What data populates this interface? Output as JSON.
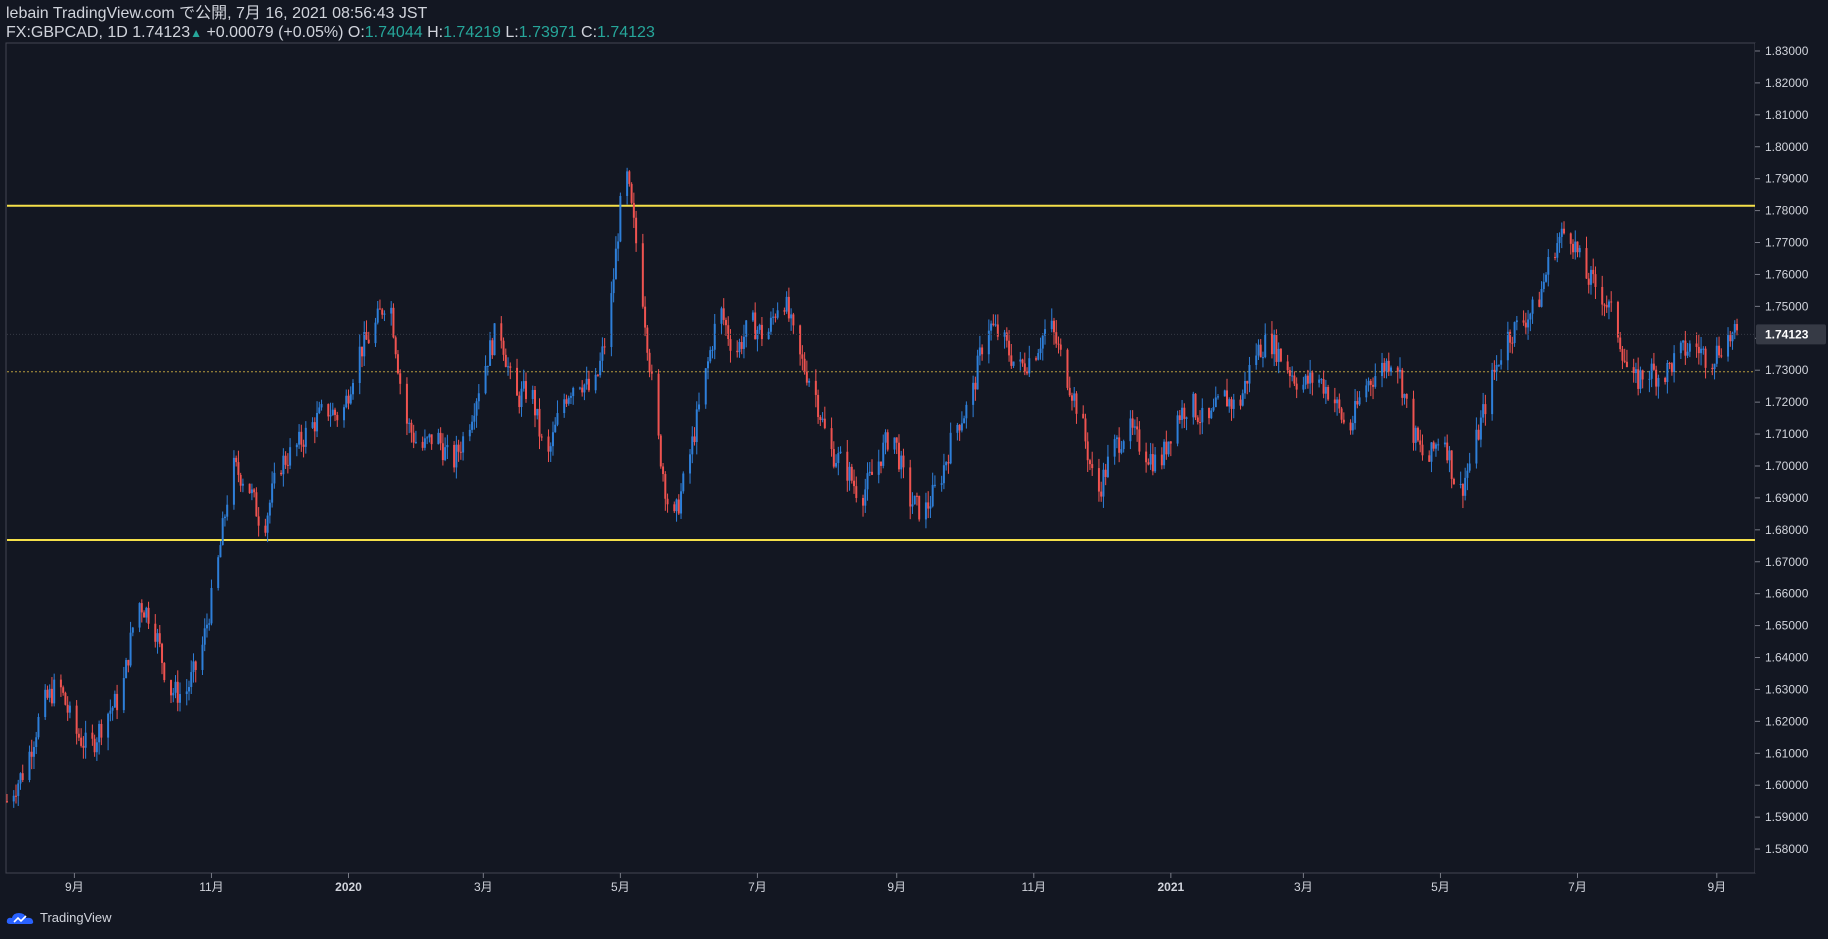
{
  "header": {
    "line1": "lebain TradingView.com で公開, 7月 16, 2021 08:56:43 JST",
    "symbol_prefix": "FX:GBPCAD, 1D 1.74123",
    "change": "+0.00079 (+0.05%)",
    "o_label": "O:",
    "o_value": "1.74044",
    "h_label": "H:",
    "h_value": "1.74219",
    "l_label": "L:",
    "l_value": "1.73971",
    "c_label": "C:",
    "c_value": "1.74123"
  },
  "footer": {
    "brand": "TradingView"
  },
  "colors": {
    "background": "#131722",
    "up": "#2e7fd9",
    "down": "#ef5350",
    "resistance_line": "#f5e04a",
    "axis_text": "#d1d4dc",
    "price_label_bg": "#363a45"
  },
  "chart_data": {
    "type": "candlestick",
    "symbol": "FX:GBPCAD",
    "interval": "1D",
    "y_ticks": [
      "1.83000",
      "1.82000",
      "1.81000",
      "1.80000",
      "1.79000",
      "1.78000",
      "1.77000",
      "1.76000",
      "1.75000",
      "1.74000",
      "1.73000",
      "1.72000",
      "1.71000",
      "1.70000",
      "1.69000",
      "1.68000",
      "1.67000",
      "1.66000",
      "1.65000",
      "1.64000",
      "1.63000",
      "1.62000",
      "1.61000",
      "1.60000",
      "1.59000",
      "1.58000"
    ],
    "ylim": [
      1.5725,
      1.8325
    ],
    "x_range": [
      "2019-08-02",
      "2021-09-18"
    ],
    "x_ticks": [
      {
        "date": "2019-09-01",
        "label": "9月",
        "bold": false
      },
      {
        "date": "2019-11-01",
        "label": "11月",
        "bold": false
      },
      {
        "date": "2020-01-01",
        "label": "2020",
        "bold": true
      },
      {
        "date": "2020-03-01",
        "label": "3月",
        "bold": false
      },
      {
        "date": "2020-05-01",
        "label": "5月",
        "bold": false
      },
      {
        "date": "2020-07-01",
        "label": "7月",
        "bold": false
      },
      {
        "date": "2020-09-01",
        "label": "9月",
        "bold": false
      },
      {
        "date": "2020-11-01",
        "label": "11月",
        "bold": false
      },
      {
        "date": "2021-01-01",
        "label": "2021",
        "bold": true
      },
      {
        "date": "2021-03-01",
        "label": "3月",
        "bold": false
      },
      {
        "date": "2021-05-01",
        "label": "5月",
        "bold": false
      },
      {
        "date": "2021-07-01",
        "label": "7月",
        "bold": false
      },
      {
        "date": "2021-09-01",
        "label": "9月",
        "bold": false
      }
    ],
    "last_price": {
      "value": 1.74123,
      "label": "1.74123"
    },
    "horizontal_lines": [
      {
        "value": 1.7815,
        "style": "solid",
        "color": "#f5e04a"
      },
      {
        "value": 1.6768,
        "style": "solid",
        "color": "#f5e04a"
      },
      {
        "value": 1.7295,
        "style": "dotted",
        "color": "#b59a3c"
      }
    ],
    "close_path": [
      [
        "2019-08-02",
        1.595
      ],
      [
        "2019-08-10",
        1.605
      ],
      [
        "2019-08-18",
        1.625
      ],
      [
        "2019-08-25",
        1.632
      ],
      [
        "2019-09-01",
        1.617
      ],
      [
        "2019-09-08",
        1.611
      ],
      [
        "2019-09-15",
        1.622
      ],
      [
        "2019-09-22",
        1.628
      ],
      [
        "2019-09-29",
        1.658
      ],
      [
        "2019-10-06",
        1.652
      ],
      [
        "2019-10-13",
        1.63
      ],
      [
        "2019-10-20",
        1.628
      ],
      [
        "2019-10-27",
        1.64
      ],
      [
        "2019-11-03",
        1.665
      ],
      [
        "2019-11-10",
        1.7
      ],
      [
        "2019-11-17",
        1.695
      ],
      [
        "2019-11-24",
        1.68
      ],
      [
        "2019-12-01",
        1.7
      ],
      [
        "2019-12-08",
        1.705
      ],
      [
        "2019-12-15",
        1.712
      ],
      [
        "2019-12-22",
        1.718
      ],
      [
        "2019-12-29",
        1.715
      ],
      [
        "2020-01-05",
        1.735
      ],
      [
        "2020-01-12",
        1.742
      ],
      [
        "2020-01-19",
        1.755
      ],
      [
        "2020-01-26",
        1.715
      ],
      [
        "2020-02-02",
        1.705
      ],
      [
        "2020-02-09",
        1.71
      ],
      [
        "2020-02-16",
        1.7
      ],
      [
        "2020-02-23",
        1.712
      ],
      [
        "2020-03-01",
        1.73
      ],
      [
        "2020-03-08",
        1.745
      ],
      [
        "2020-03-15",
        1.72
      ],
      [
        "2020-03-22",
        1.725
      ],
      [
        "2020-03-29",
        1.7
      ],
      [
        "2020-04-05",
        1.72
      ],
      [
        "2020-04-12",
        1.728
      ],
      [
        "2020-04-19",
        1.722
      ],
      [
        "2020-04-26",
        1.745
      ],
      [
        "2020-05-03",
        1.795
      ],
      [
        "2020-05-10",
        1.76
      ],
      [
        "2020-05-17",
        1.712
      ],
      [
        "2020-05-24",
        1.68
      ],
      [
        "2020-05-31",
        1.7
      ],
      [
        "2020-06-07",
        1.725
      ],
      [
        "2020-06-14",
        1.75
      ],
      [
        "2020-06-21",
        1.735
      ],
      [
        "2020-06-28",
        1.745
      ],
      [
        "2020-07-05",
        1.74
      ],
      [
        "2020-07-12",
        1.755
      ],
      [
        "2020-07-19",
        1.735
      ],
      [
        "2020-07-26",
        1.725
      ],
      [
        "2020-08-02",
        1.705
      ],
      [
        "2020-08-09",
        1.7
      ],
      [
        "2020-08-16",
        1.69
      ],
      [
        "2020-08-23",
        1.7
      ],
      [
        "2020-08-30",
        1.712
      ],
      [
        "2020-09-06",
        1.69
      ],
      [
        "2020-09-13",
        1.685
      ],
      [
        "2020-09-20",
        1.695
      ],
      [
        "2020-09-27",
        1.712
      ],
      [
        "2020-10-04",
        1.72
      ],
      [
        "2020-10-11",
        1.745
      ],
      [
        "2020-10-18",
        1.74
      ],
      [
        "2020-10-25",
        1.73
      ],
      [
        "2020-11-01",
        1.735
      ],
      [
        "2020-11-08",
        1.745
      ],
      [
        "2020-11-15",
        1.73
      ],
      [
        "2020-11-22",
        1.715
      ],
      [
        "2020-11-29",
        1.69
      ],
      [
        "2020-12-06",
        1.705
      ],
      [
        "2020-12-13",
        1.712
      ],
      [
        "2020-12-20",
        1.705
      ],
      [
        "2020-12-27",
        1.7
      ],
      [
        "2021-01-03",
        1.715
      ],
      [
        "2021-01-10",
        1.72
      ],
      [
        "2021-01-17",
        1.712
      ],
      [
        "2021-01-24",
        1.722
      ],
      [
        "2021-01-31",
        1.718
      ],
      [
        "2021-02-07",
        1.735
      ],
      [
        "2021-02-14",
        1.74
      ],
      [
        "2021-02-21",
        1.732
      ],
      [
        "2021-02-28",
        1.725
      ],
      [
        "2021-03-07",
        1.728
      ],
      [
        "2021-03-14",
        1.722
      ],
      [
        "2021-03-21",
        1.71
      ],
      [
        "2021-03-28",
        1.725
      ],
      [
        "2021-04-04",
        1.73
      ],
      [
        "2021-04-11",
        1.735
      ],
      [
        "2021-04-18",
        1.712
      ],
      [
        "2021-04-25",
        1.7
      ],
      [
        "2021-05-02",
        1.712
      ],
      [
        "2021-05-09",
        1.69
      ],
      [
        "2021-05-16",
        1.705
      ],
      [
        "2021-05-23",
        1.725
      ],
      [
        "2021-05-30",
        1.74
      ],
      [
        "2021-06-06",
        1.745
      ],
      [
        "2021-06-13",
        1.75
      ],
      [
        "2021-06-20",
        1.768
      ],
      [
        "2021-06-27",
        1.775
      ],
      [
        "2021-07-04",
        1.76
      ],
      [
        "2021-07-11",
        1.755
      ],
      [
        "2021-07-18",
        1.745
      ],
      [
        "2021-07-25",
        1.725
      ],
      [
        "2021-08-01",
        1.73
      ],
      [
        "2021-08-08",
        1.728
      ],
      [
        "2021-08-15",
        1.735
      ],
      [
        "2021-08-22",
        1.738
      ],
      [
        "2021-08-29",
        1.733
      ],
      [
        "2021-09-05",
        1.74
      ],
      [
        "2021-09-12",
        1.741
      ]
    ]
  }
}
